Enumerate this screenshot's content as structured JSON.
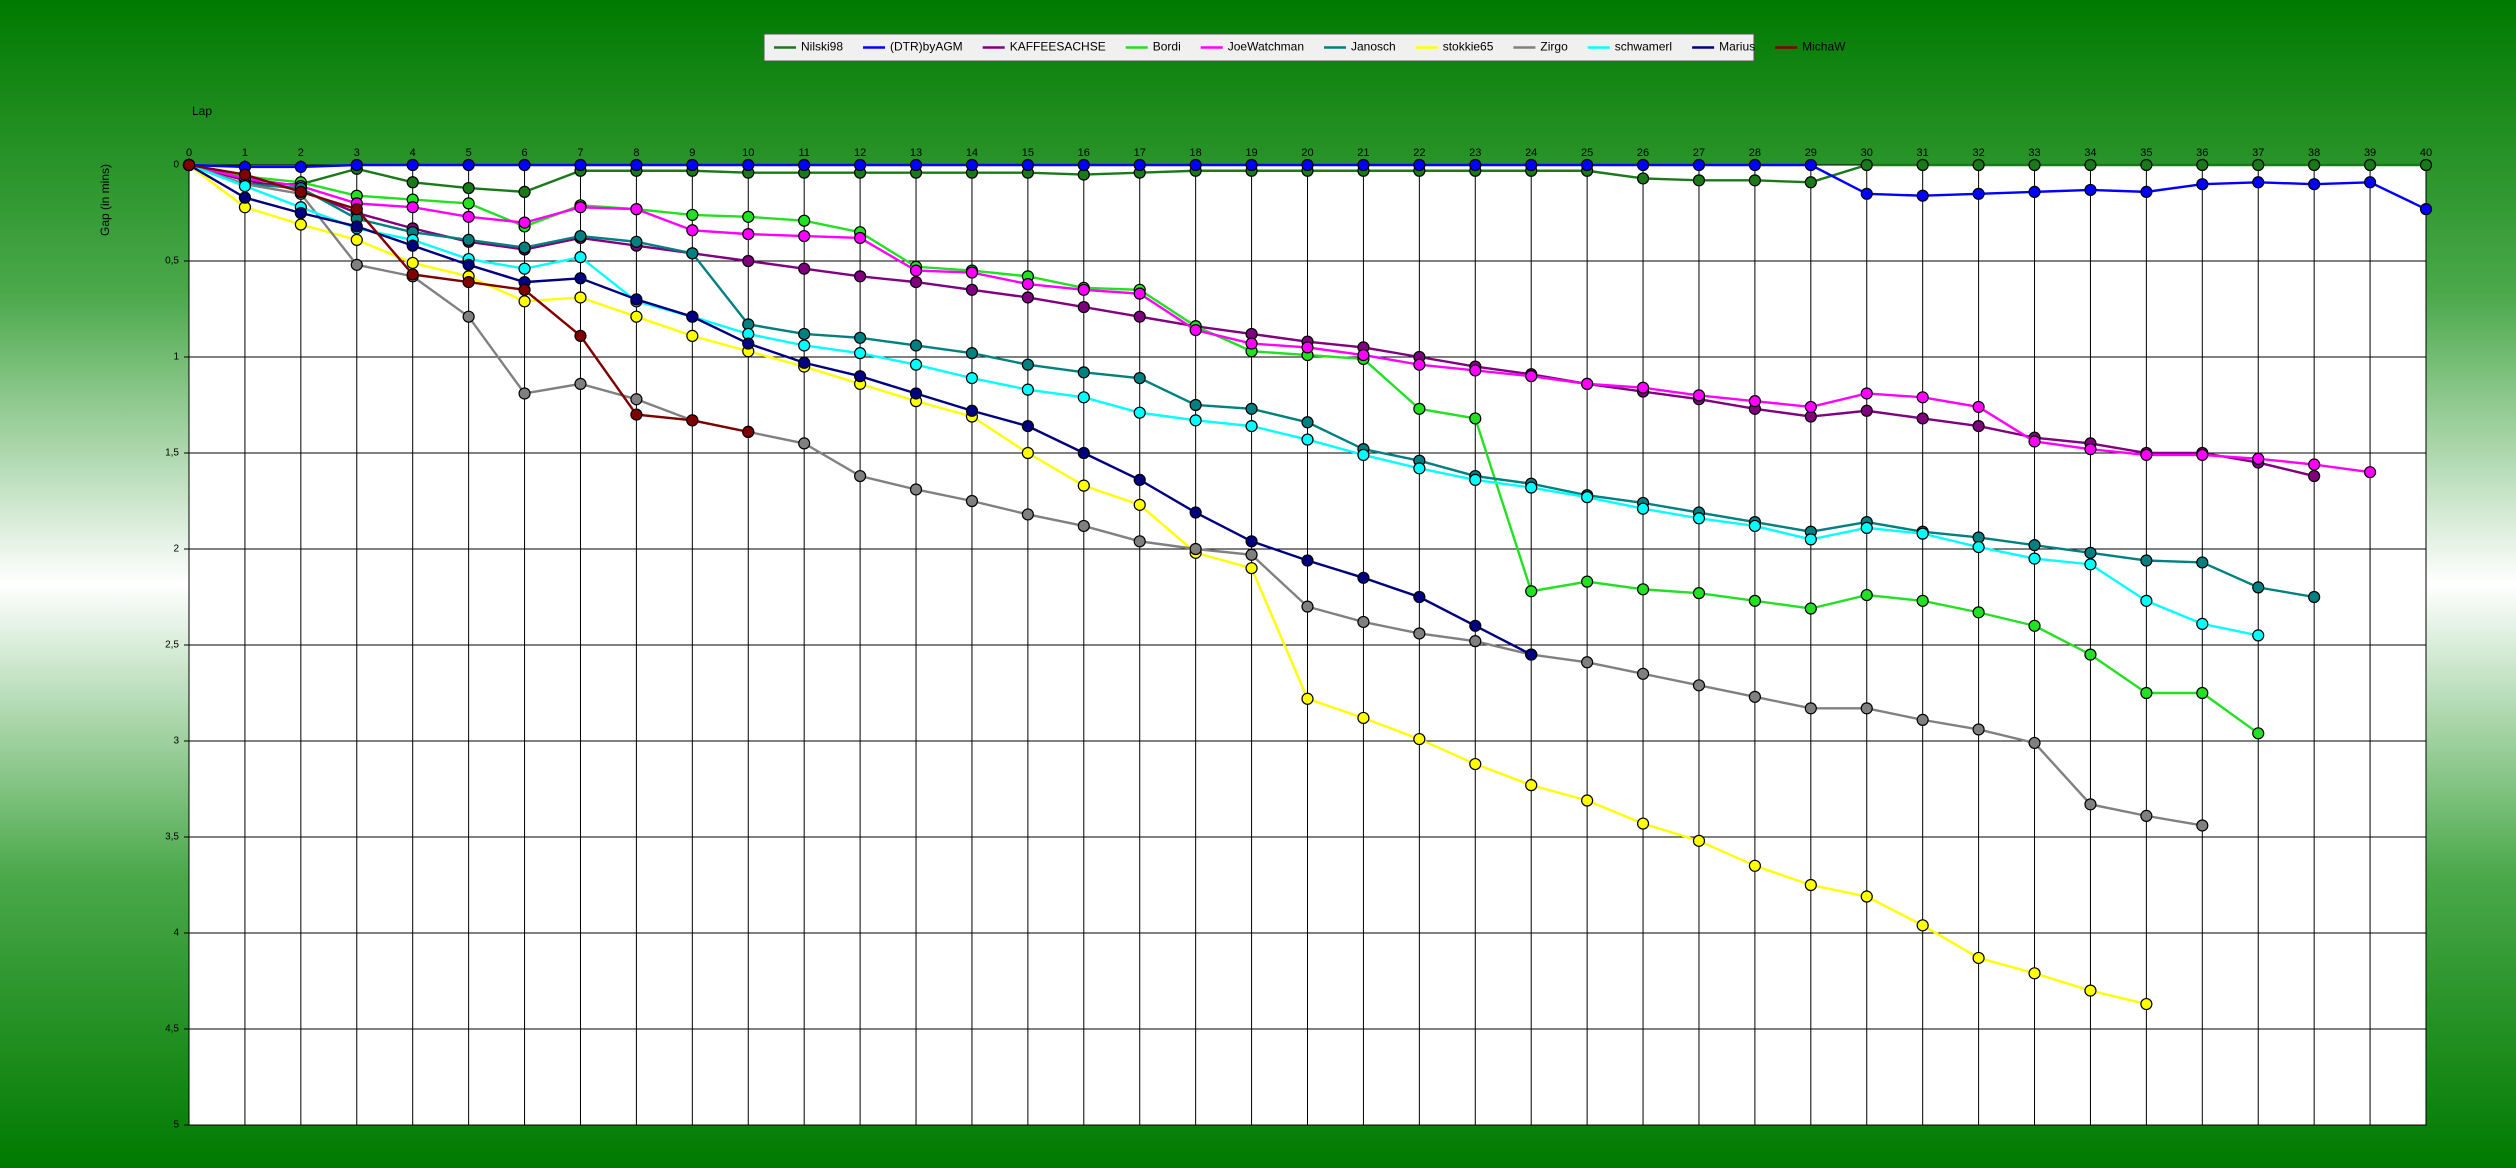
{
  "chart_data": {
    "type": "line",
    "x_label": "Lap",
    "y_label": "Gap (in mins)",
    "x": [
      0,
      1,
      2,
      3,
      4,
      5,
      6,
      7,
      8,
      9,
      10,
      11,
      12,
      13,
      14,
      15,
      16,
      17,
      18,
      19,
      20,
      21,
      22,
      23,
      24,
      25,
      26,
      27,
      28,
      29,
      30,
      31,
      32,
      33,
      34,
      35,
      36,
      37,
      38,
      39,
      40
    ],
    "xlim": [
      0,
      40
    ],
    "xticks": [
      0,
      1,
      2,
      3,
      4,
      5,
      6,
      7,
      8,
      9,
      10,
      11,
      12,
      13,
      14,
      15,
      16,
      17,
      18,
      19,
      20,
      21,
      22,
      23,
      24,
      25,
      26,
      27,
      28,
      29,
      30,
      31,
      32,
      33,
      34,
      35,
      36,
      37,
      38,
      39,
      40
    ],
    "ylim": [
      0,
      5
    ],
    "y_inverted": true,
    "yticks": [
      0,
      {
        "value": 0.5,
        "label": "0,5"
      },
      1,
      {
        "value": 1.5,
        "label": "1,5"
      },
      2,
      {
        "value": 2.5,
        "label": "2,5"
      },
      3,
      {
        "value": 3.5,
        "label": "3,5"
      },
      4,
      {
        "value": 4.5,
        "label": "4,5"
      },
      5
    ],
    "grid": true,
    "legend": "top",
    "series": [
      {
        "name": "Nilski98",
        "color": "#1a7a1a",
        "values": [
          0,
          0.1,
          0.1,
          0.02,
          0.09,
          0.12,
          0.14,
          0.03,
          0.03,
          0.03,
          0.04,
          0.04,
          0.04,
          0.04,
          0.04,
          0.04,
          0.05,
          0.04,
          0.03,
          0.03,
          0.03,
          0.03,
          0.03,
          0.03,
          0.03,
          0.03,
          0.07,
          0.08,
          0.08,
          0.09,
          0,
          0,
          0,
          0,
          0,
          0,
          0,
          0,
          0,
          0,
          0
        ]
      },
      {
        "name": "(DTR)byAGM",
        "color": "#0000ff",
        "values": [
          0,
          0.01,
          0.01,
          0,
          0,
          0,
          0,
          0,
          0,
          0,
          0,
          0,
          0,
          0,
          0,
          0,
          0,
          0,
          0,
          0,
          0,
          0,
          0,
          0,
          0,
          0,
          0,
          0,
          0,
          0,
          0.15,
          0.16,
          0.15,
          0.14,
          0.13,
          0.14,
          0.1,
          0.09,
          0.1,
          0.09,
          0.23
        ]
      },
      {
        "name": "KAFFEESACHSE",
        "color": "#800080",
        "values": [
          0,
          0.08,
          0.13,
          0.25,
          0.33,
          0.4,
          0.44,
          0.38,
          0.42,
          0.46,
          0.5,
          0.54,
          0.58,
          0.61,
          0.65,
          0.69,
          0.74,
          0.79,
          0.84,
          0.88,
          0.92,
          0.95,
          1.0,
          1.05,
          1.09,
          1.14,
          1.18,
          1.22,
          1.27,
          1.31,
          1.28,
          1.32,
          1.36,
          1.42,
          1.45,
          1.5,
          1.5,
          1.55,
          1.62,
          null,
          null
        ]
      },
      {
        "name": "Bordi",
        "color": "#22e022",
        "values": [
          0,
          0.06,
          0.09,
          0.16,
          0.18,
          0.2,
          0.32,
          0.21,
          0.23,
          0.26,
          0.27,
          0.29,
          0.35,
          0.53,
          0.55,
          0.58,
          0.64,
          0.65,
          0.84,
          0.97,
          0.99,
          1.01,
          1.27,
          1.32,
          2.22,
          2.17,
          2.21,
          2.23,
          2.27,
          2.31,
          2.24,
          2.27,
          2.33,
          2.4,
          2.55,
          2.75,
          2.75,
          2.96,
          null,
          null,
          null
        ]
      },
      {
        "name": "JoeWatchman",
        "color": "#ff00ff",
        "values": [
          0,
          0.07,
          0.11,
          0.2,
          0.22,
          0.27,
          0.3,
          0.22,
          0.23,
          0.34,
          0.36,
          0.37,
          0.38,
          0.55,
          0.56,
          0.62,
          0.65,
          0.67,
          0.86,
          0.93,
          0.95,
          0.99,
          1.04,
          1.07,
          1.1,
          1.14,
          1.16,
          1.2,
          1.23,
          1.26,
          1.19,
          1.21,
          1.26,
          1.44,
          1.48,
          1.51,
          1.51,
          1.53,
          1.56,
          1.6,
          null
        ]
      },
      {
        "name": "Janosch",
        "color": "#008080",
        "values": [
          0,
          0.1,
          0.12,
          0.28,
          0.35,
          0.39,
          0.43,
          0.37,
          0.4,
          0.46,
          0.83,
          0.88,
          0.9,
          0.94,
          0.98,
          1.04,
          1.08,
          1.11,
          1.25,
          1.27,
          1.34,
          1.48,
          1.54,
          1.62,
          1.66,
          1.72,
          1.76,
          1.81,
          1.86,
          1.91,
          1.86,
          1.91,
          1.94,
          1.98,
          2.02,
          2.06,
          2.07,
          2.2,
          2.25,
          null,
          null
        ]
      },
      {
        "name": "stokkie65",
        "color": "#ffff00",
        "values": [
          0,
          0.22,
          0.31,
          0.39,
          0.51,
          0.58,
          0.71,
          0.69,
          0.79,
          0.89,
          0.97,
          1.05,
          1.14,
          1.23,
          1.31,
          1.5,
          1.67,
          1.77,
          2.02,
          2.1,
          2.78,
          2.88,
          2.99,
          3.12,
          3.23,
          3.31,
          3.43,
          3.52,
          3.65,
          3.75,
          3.81,
          3.96,
          4.13,
          4.21,
          4.3,
          4.37,
          null,
          null,
          null,
          null,
          null
        ]
      },
      {
        "name": "Zirgo",
        "color": "#808080",
        "values": [
          0,
          0.1,
          0.15,
          0.52,
          0.58,
          0.79,
          1.19,
          1.14,
          1.22,
          1.33,
          1.39,
          1.45,
          1.62,
          1.69,
          1.75,
          1.82,
          1.88,
          1.96,
          2.0,
          2.03,
          2.3,
          2.38,
          2.44,
          2.48,
          2.55,
          2.59,
          2.65,
          2.71,
          2.77,
          2.83,
          2.83,
          2.89,
          2.94,
          3.01,
          3.33,
          3.39,
          3.44,
          null,
          null,
          null,
          null
        ]
      },
      {
        "name": "schwamerl",
        "color": "#00ffff",
        "values": [
          0,
          0.11,
          0.22,
          0.33,
          0.39,
          0.49,
          0.54,
          0.48,
          0.71,
          0.79,
          0.88,
          0.94,
          0.98,
          1.04,
          1.11,
          1.17,
          1.21,
          1.29,
          1.33,
          1.36,
          1.43,
          1.51,
          1.58,
          1.64,
          1.68,
          1.73,
          1.79,
          1.84,
          1.88,
          1.95,
          1.89,
          1.92,
          1.99,
          2.05,
          2.08,
          2.27,
          2.39,
          2.45,
          null,
          null,
          null
        ]
      },
      {
        "name": "Marius",
        "color": "#000080",
        "values": [
          0,
          0.17,
          0.25,
          0.32,
          0.42,
          0.52,
          0.61,
          0.59,
          0.7,
          0.79,
          0.93,
          1.03,
          1.1,
          1.19,
          1.28,
          1.36,
          1.5,
          1.64,
          1.81,
          1.96,
          2.06,
          2.15,
          2.25,
          2.4,
          2.55,
          null,
          null,
          null,
          null,
          null,
          null,
          null,
          null,
          null,
          null,
          null,
          null,
          null,
          null,
          null,
          null
        ]
      },
      {
        "name": "MichaW",
        "color": "#800000",
        "values": [
          0,
          0.05,
          0.14,
          0.23,
          0.57,
          0.61,
          0.65,
          0.89,
          1.3,
          1.33,
          1.39,
          null,
          null,
          null,
          null,
          null,
          null,
          null,
          null,
          null,
          null,
          null,
          null,
          null,
          null,
          null,
          null,
          null,
          null,
          null,
          null,
          null,
          null,
          null,
          null,
          null,
          null,
          null,
          null,
          null,
          null
        ]
      }
    ]
  }
}
